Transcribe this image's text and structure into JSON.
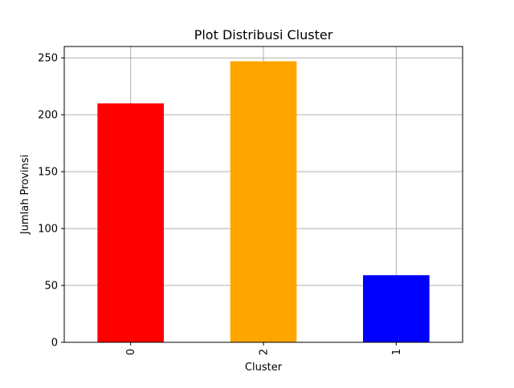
{
  "chart_data": {
    "type": "bar",
    "title": "Plot Distribusi Cluster",
    "xlabel": "Cluster",
    "ylabel": "Jumlah Provinsi",
    "categories": [
      "0",
      "2",
      "1"
    ],
    "values": [
      210,
      247,
      59
    ],
    "colors": [
      "#ff0000",
      "#ffa500",
      "#0000ff"
    ],
    "ylim": [
      0,
      260
    ],
    "yticks": [
      0,
      50,
      100,
      150,
      200,
      250
    ],
    "grid": true,
    "xtick_rotation": "vertical"
  }
}
